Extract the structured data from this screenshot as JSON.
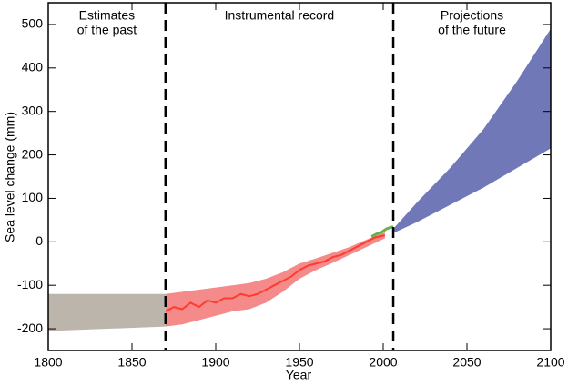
{
  "chart_data": {
    "type": "line",
    "xlabel": "Year",
    "ylabel": "Sea level change (mm)",
    "xlim": [
      1800,
      2100
    ],
    "ylim": [
      -250,
      550
    ],
    "xticks": [
      1800,
      1850,
      1900,
      1950,
      2000,
      2050,
      2100
    ],
    "yticks": [
      -200,
      -100,
      0,
      100,
      200,
      300,
      400,
      500
    ],
    "dividers": [
      1870,
      2006
    ],
    "annotations": [
      {
        "text": [
          "Estimates",
          "of the past"
        ],
        "x": 1835
      },
      {
        "text": [
          "Instrumental record"
        ],
        "x": 1938
      },
      {
        "text": [
          "Projections",
          "of the future"
        ],
        "x": 2053
      }
    ],
    "bands": [
      {
        "color": "#bbb5ab",
        "x": [
          1800,
          1870
        ],
        "lower": [
          -205,
          -195
        ],
        "upper": [
          -120,
          -120
        ]
      },
      {
        "color": "#f48a8a",
        "x": [
          1870,
          1880,
          1890,
          1900,
          1910,
          1920,
          1930,
          1940,
          1950,
          1960,
          1970,
          1980,
          1990,
          2001
        ],
        "lower": [
          -195,
          -190,
          -180,
          -170,
          -160,
          -155,
          -140,
          -115,
          -85,
          -65,
          -48,
          -30,
          -12,
          8
        ],
        "upper": [
          -120,
          -115,
          -110,
          -105,
          -100,
          -95,
          -85,
          -70,
          -50,
          -38,
          -25,
          -12,
          5,
          22
        ]
      },
      {
        "color": "#7178b8",
        "x": [
          2006,
          2020,
          2040,
          2060,
          2080,
          2100
        ],
        "lower": [
          20,
          45,
          85,
          125,
          170,
          215
        ],
        "upper": [
          30,
          90,
          170,
          260,
          370,
          490
        ]
      }
    ],
    "series": [
      {
        "color": "#ff3b30",
        "x": [
          1870,
          1875,
          1880,
          1885,
          1890,
          1895,
          1900,
          1905,
          1910,
          1915,
          1920,
          1925,
          1930,
          1935,
          1940,
          1945,
          1950,
          1955,
          1960,
          1965,
          1970,
          1975,
          1980,
          1985,
          1990,
          1995,
          2001
        ],
        "values": [
          -160,
          -150,
          -155,
          -140,
          -150,
          -135,
          -140,
          -130,
          -130,
          -120,
          -125,
          -120,
          -110,
          -100,
          -90,
          -80,
          -65,
          -55,
          -50,
          -45,
          -35,
          -30,
          -20,
          -10,
          0,
          10,
          15
        ]
      },
      {
        "color": "#6ab04c",
        "x": [
          1993,
          1996,
          1999,
          2002,
          2006
        ],
        "values": [
          12,
          18,
          22,
          30,
          35
        ]
      }
    ]
  }
}
